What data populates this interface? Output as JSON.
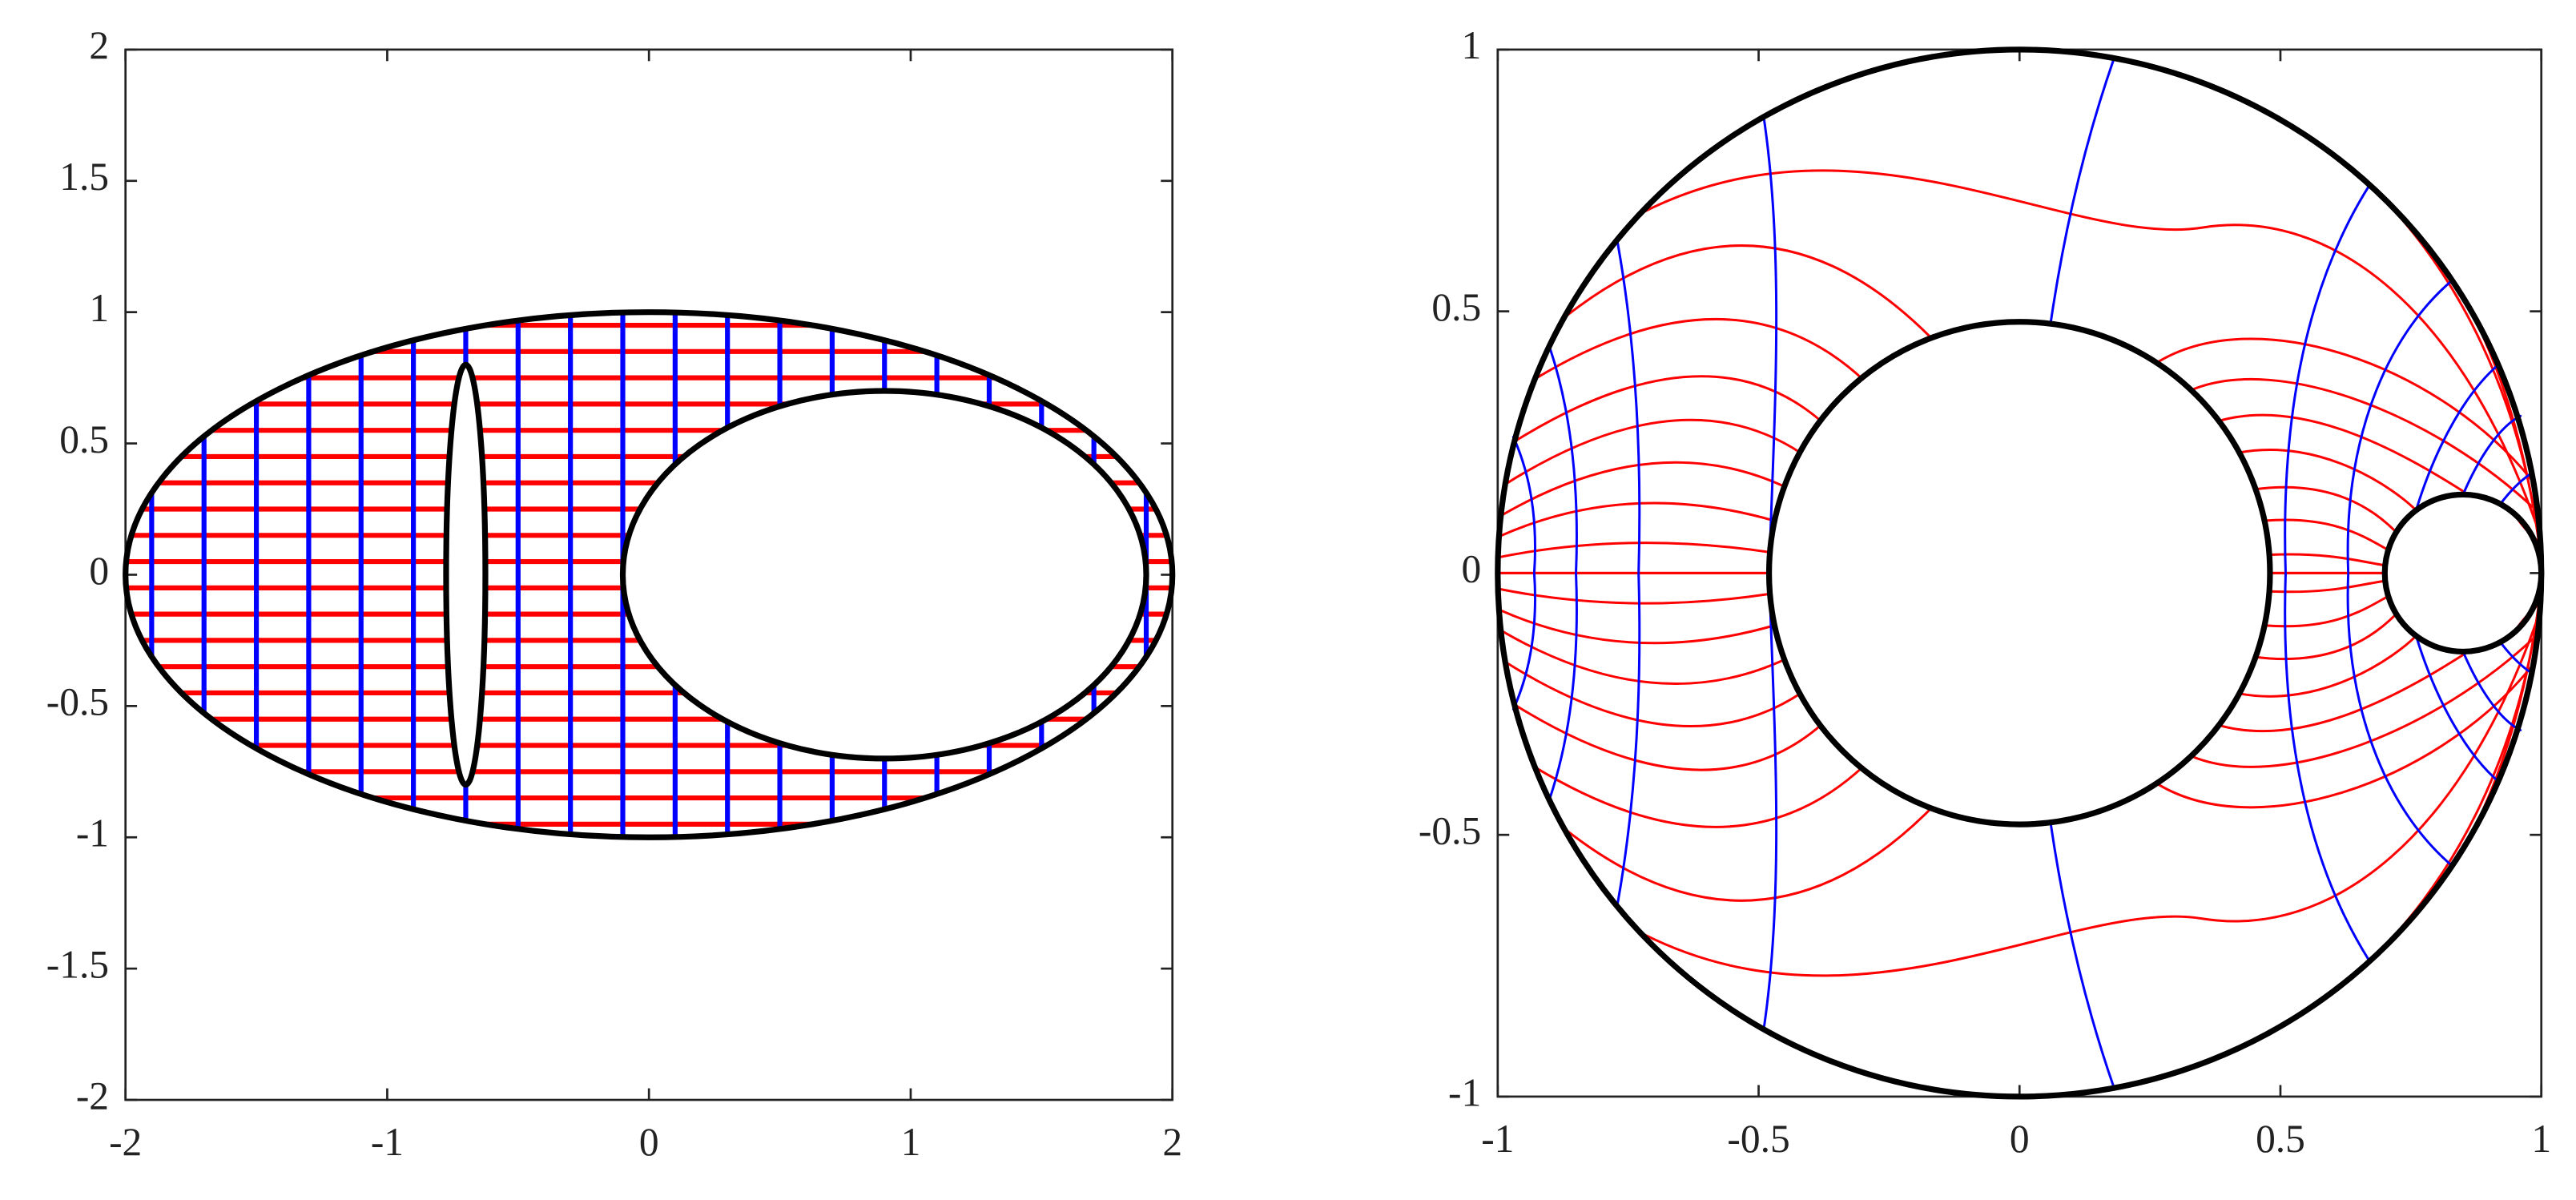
{
  "chart_data": [
    {
      "type": "mesh",
      "xlim": [
        -2,
        2
      ],
      "ylim": [
        -2,
        2
      ],
      "xticks": [
        -2,
        -1,
        0,
        1,
        2
      ],
      "yticks": [
        -2,
        -1.5,
        -1,
        -0.5,
        0,
        0.5,
        1,
        1.5,
        2
      ],
      "boundary_color": "#000000",
      "ellipses": [
        {
          "cx": 0,
          "cy": 0,
          "rx": 2,
          "ry": 1
        },
        {
          "cx": 0.9,
          "cy": 0,
          "rx": 1,
          "ry": 0.7
        },
        {
          "cx": -0.7,
          "cy": 0,
          "rx": 0.075,
          "ry": 0.8
        }
      ],
      "hlines": {
        "color": "#ff0000",
        "values": [
          -0.95,
          -0.85,
          -0.75,
          -0.65,
          -0.55,
          -0.45,
          -0.35,
          -0.25,
          -0.15,
          -0.05,
          0.05,
          0.15,
          0.25,
          0.35,
          0.45,
          0.55,
          0.65,
          0.75,
          0.85,
          0.95
        ]
      },
      "vlines": {
        "color": "#0000ff",
        "values": [
          -1.9,
          -1.7,
          -1.5,
          -1.3,
          -1.1,
          -0.9,
          -0.7,
          -0.5,
          -0.3,
          -0.1,
          0.1,
          0.3,
          0.5,
          0.7,
          0.9,
          1.1,
          1.3,
          1.5,
          1.7,
          1.9
        ]
      }
    },
    {
      "type": "curves",
      "xlim": [
        -1,
        1
      ],
      "ylim": [
        -1,
        1
      ],
      "xticks": [
        -1,
        -0.5,
        0,
        0.5,
        1
      ],
      "yticks": [
        -1,
        -0.5,
        0,
        0.5,
        1
      ],
      "boundary_color": "#000000",
      "level_color": "#ff0000",
      "flow_color": "#0000ff",
      "circles": [
        {
          "cx": 0,
          "cy": 0,
          "r": 1
        },
        {
          "cx": 0,
          "cy": 0,
          "r": 0.48
        },
        {
          "cx": 0.85,
          "cy": 0,
          "r": 0.15
        }
      ]
    }
  ]
}
